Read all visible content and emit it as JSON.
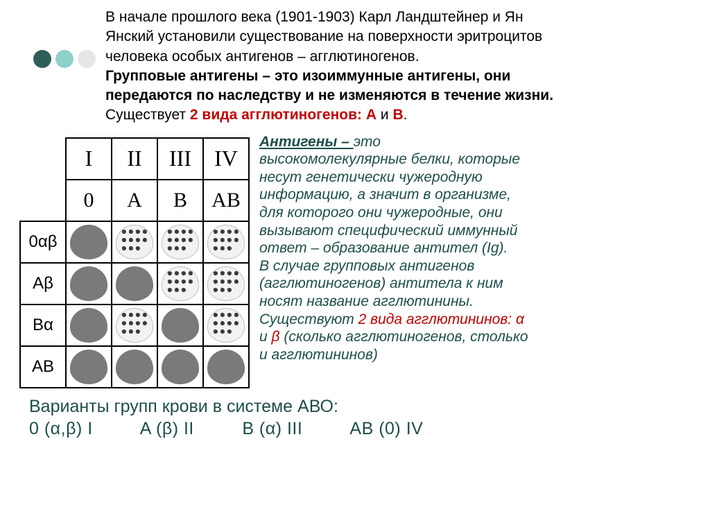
{
  "deco_colors": [
    "#2f5e5b",
    "#8fd0cb",
    "#e6e6e6"
  ],
  "intro": {
    "l1": "В начале прошлого века (1901-1903) Карл Ландштейнер и Ян",
    "l2": "Янский установили существование на поверхности эритроцитов",
    "l3": "человека особых антигенов – агглютиногенов.",
    "l4a": "Групповые антигены – это изоиммунные антигены, они",
    "l4b": "передаются по наследству и не изменяются в течение жизни.",
    "l5a": "Существует ",
    "l5b": "2 вида агглютиногенов: ",
    "l5c": "А ",
    "l5d": "и ",
    "l5e": "В",
    "l5f": "."
  },
  "table": {
    "col_headers": [
      "I",
      "II",
      "III",
      "IV"
    ],
    "col_sub": [
      "0",
      "A",
      "B",
      "AB"
    ],
    "row_labels": [
      "0αβ",
      "Aβ",
      "Bα",
      "AB"
    ],
    "cells": [
      [
        "solid",
        "speck",
        "speck",
        "speck"
      ],
      [
        "solid",
        "solid",
        "speck",
        "speck"
      ],
      [
        "solid",
        "speck",
        "solid",
        "speck"
      ],
      [
        "solid",
        "solid",
        "solid",
        "solid"
      ]
    ],
    "solid_color": "#7a7a7a",
    "speck_bg": "#f2f2f2",
    "speck_dot": "#3a3a3a"
  },
  "side": {
    "headword": "Антигены – ",
    "t1": "это",
    "t2": "высокомолекулярные белки, которые",
    "t3": "несут генетически чужеродную",
    "t4": "информацию, а значит в организме,",
    "t5": "для которого они чужеродные, они",
    "t6": "вызывают специфический иммунный",
    "t7": "ответ – образование антител (Ig).",
    "t8": "В случае групповых антигенов",
    "t9": "(агглютиногенов) антитела к ним",
    "t10": "носят название агглютинины.",
    "t11a": "Существуют ",
    "t11b": "2 вида агглютининов: ",
    "alpha": "α",
    "t12a": "и ",
    "beta": "β",
    "t12b": " (сколько агглютиногенов, столько",
    "t13": "и агглютининов)"
  },
  "footer": {
    "title": "Варианты групп крови в системе АВО:",
    "v1": "0 (α,β) I",
    "v2": "A (β) II",
    "v3": "B (α) III",
    "v4": "AB (0) IV"
  },
  "text_color_body": "#000000",
  "text_color_teal": "#1e4e4a",
  "text_color_red": "#c00000",
  "background_color": "#ffffff"
}
